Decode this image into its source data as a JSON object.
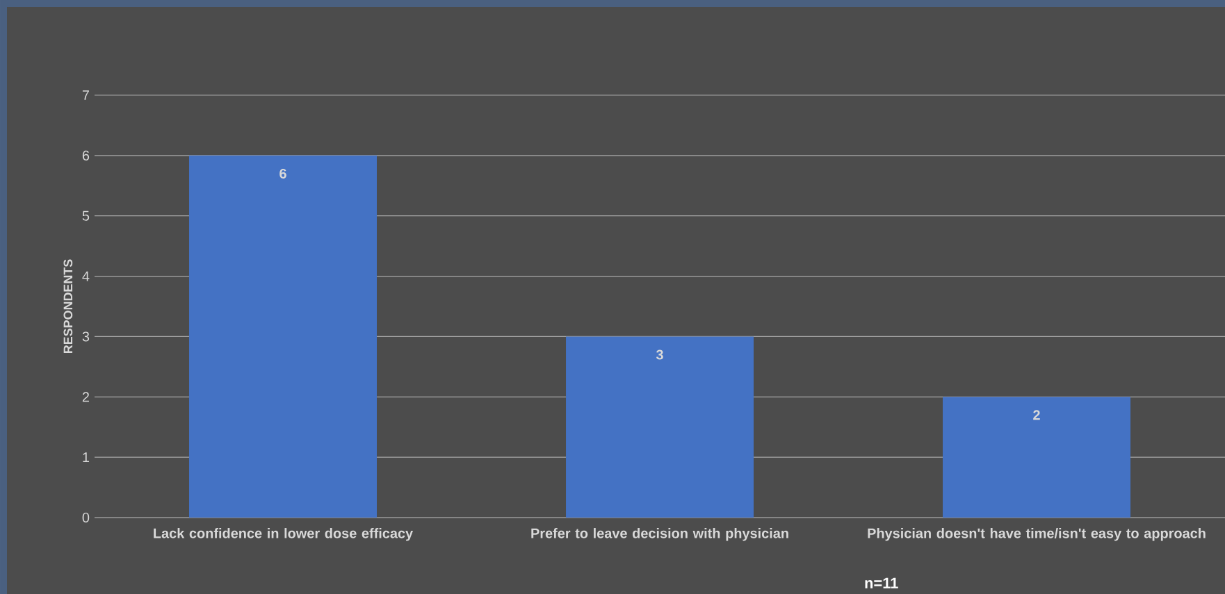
{
  "chart_data": {
    "type": "bar",
    "ylabel": "RESPONDENTS",
    "categories": [
      "Lack confidence in lower dose efficacy",
      "Prefer to leave decision with physician",
      "Physician doesn't have time/isn't easy to approach"
    ],
    "values": [
      6,
      3,
      2
    ],
    "color": "#4472c4",
    "ylim": [
      0,
      7
    ],
    "yticks": [
      0,
      1,
      2,
      3,
      4,
      5,
      6,
      7
    ],
    "grid": "y",
    "data_labels": true,
    "annotations": [
      "n=11"
    ]
  }
}
